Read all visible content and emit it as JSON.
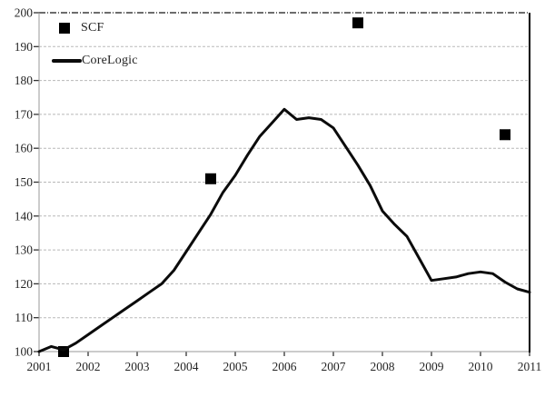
{
  "chart_data": {
    "type": "line",
    "title": "",
    "xlabel": "",
    "ylabel": "",
    "xlim": [
      2001,
      2011
    ],
    "ylim": [
      100,
      200
    ],
    "x_ticks": [
      2001,
      2002,
      2003,
      2004,
      2005,
      2006,
      2007,
      2008,
      2009,
      2010,
      2011
    ],
    "y_ticks": [
      100,
      110,
      120,
      130,
      140,
      150,
      160,
      170,
      180,
      190,
      200
    ],
    "grid": "horizontal-dashed",
    "legend_position": "top-left-inside",
    "series": [
      {
        "name": "SCF",
        "type": "scatter",
        "marker": "square",
        "color": "#000000",
        "points": [
          [
            2001.5,
            100
          ],
          [
            2004.5,
            151
          ],
          [
            2007.5,
            197
          ],
          [
            2010.5,
            164
          ]
        ]
      },
      {
        "name": "CoreLogic",
        "type": "line",
        "color": "#0b0b0b",
        "x": [
          2001.0,
          2001.25,
          2001.5,
          2001.75,
          2002.0,
          2002.25,
          2002.5,
          2002.75,
          2003.0,
          2003.25,
          2003.5,
          2003.75,
          2004.0,
          2004.25,
          2004.5,
          2004.75,
          2005.0,
          2005.25,
          2005.5,
          2005.75,
          2006.0,
          2006.25,
          2006.5,
          2006.75,
          2007.0,
          2007.25,
          2007.5,
          2007.75,
          2008.0,
          2008.25,
          2008.5,
          2008.75,
          2009.0,
          2009.25,
          2009.5,
          2009.75,
          2010.0,
          2010.25,
          2010.5,
          2010.75,
          2011.0
        ],
        "values": [
          100,
          101.5,
          100.5,
          102.5,
          105,
          107.5,
          110,
          112.5,
          115,
          117.5,
          120,
          124,
          129.5,
          135,
          140.5,
          147,
          152,
          158,
          163.5,
          167.5,
          171.5,
          168.5,
          169,
          168.5,
          166,
          160.5,
          155,
          149,
          141.5,
          137.5,
          134,
          127.5,
          121,
          121.5,
          122,
          123,
          123.5,
          123,
          120.5,
          118.5,
          117.5
        ]
      }
    ]
  },
  "legend": {
    "scf_label": "SCF",
    "corelogic_label": "CoreLogic"
  },
  "colors": {
    "background": "#ffffff",
    "line": "#0b0b0b",
    "marker": "#000000",
    "gridline": "#b8b8b8",
    "top_gridline": "#3d3d3d",
    "axis": "#9a9a9a",
    "right_border": "#000000",
    "tick": "#333333",
    "text": "#262626"
  }
}
